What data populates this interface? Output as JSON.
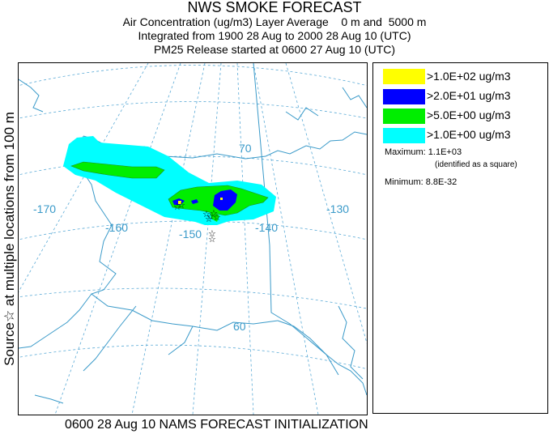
{
  "title": {
    "main": "NWS SMOKE FORECAST",
    "line2": "Air Concentration (ug/m3) Layer Average    0 m and  5000 m",
    "line3": "Integrated from 1900 28 Aug to 2000 28 Aug 10 (UTC)",
    "line4": "PM25 Release started at 0600 27 Aug 10 (UTC)"
  },
  "side_label": "Source☆ at multiple locations   from   100 m",
  "bottom_label": "0600 28 Aug 10 NAMS FORECAST INITIALIZATION",
  "map": {
    "graticule_labels": [
      "-170",
      "-160",
      "-150",
      "-140",
      "-130",
      "70",
      "60"
    ],
    "colors": {
      "coast": "#3a9ac9",
      "grid": "#5aaad6",
      "cyan": "#00ffff",
      "green": "#00ee00",
      "blue": "#0000ff",
      "yellow": "#ffff00"
    }
  },
  "legend": {
    "items": [
      {
        "label": ">1.0E+02 ug/m3",
        "color": "#ffff00"
      },
      {
        "label": ">2.0E+01 ug/m3",
        "color": "#0000ff"
      },
      {
        "label": ">5.0E+00 ug/m3",
        "color": "#00ee00"
      },
      {
        "label": ">1.0E+00 ug/m3",
        "color": "#00ffff"
      }
    ],
    "maximum": "Maximum: 1.1E+03",
    "maximum_note": "(identified as a square)",
    "minimum": "Minimum: 8.8E-32"
  }
}
